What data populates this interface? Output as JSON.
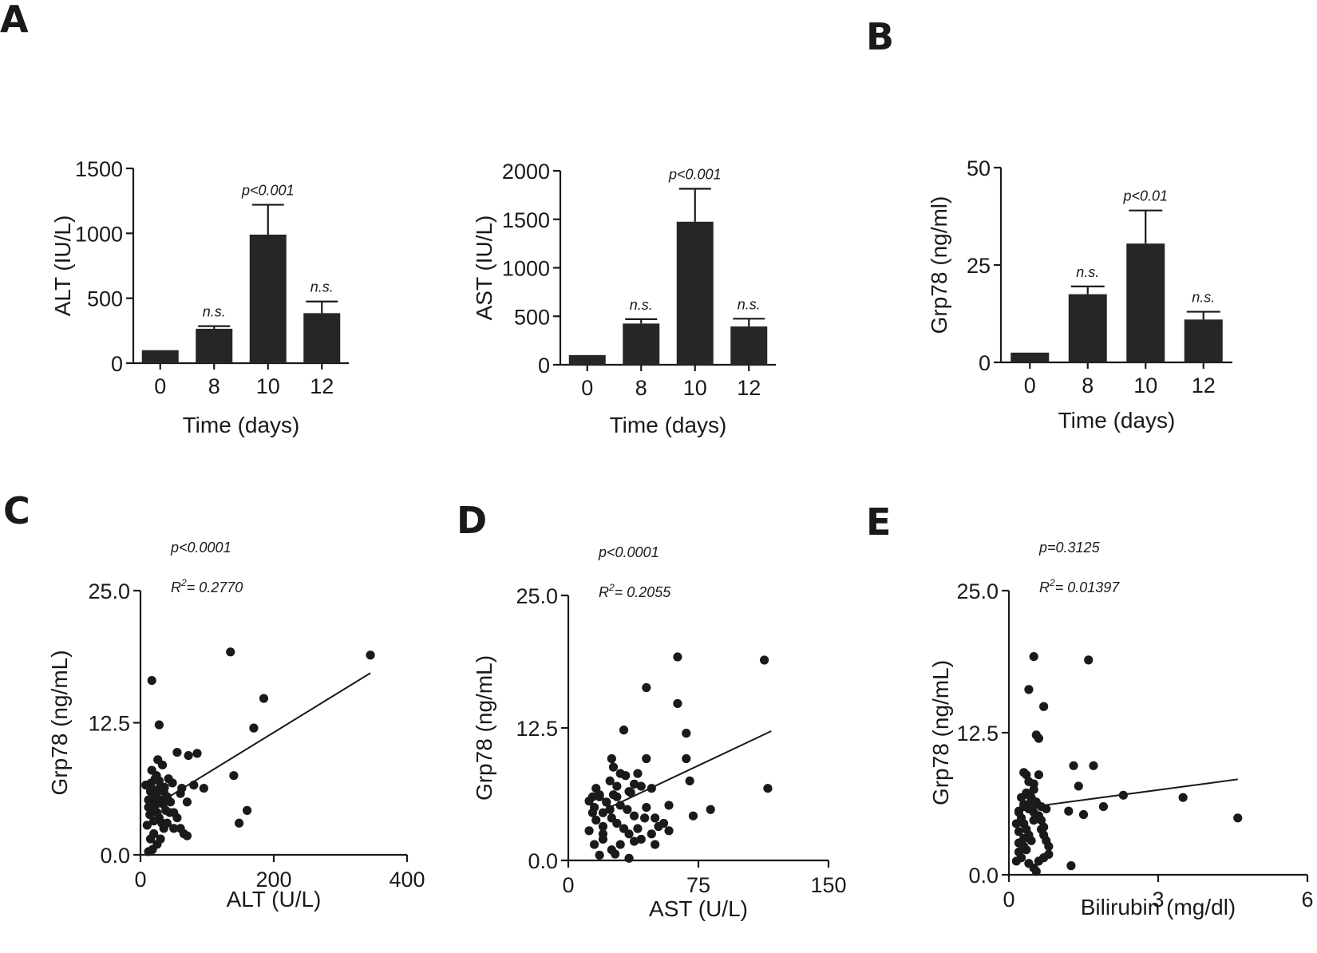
{
  "panel_labels": [
    "A",
    "B",
    "C",
    "D",
    "E"
  ],
  "chart_data": [
    {
      "id": "alt_bar",
      "panel": "A",
      "type": "bar",
      "categories": [
        "0",
        "8",
        "10",
        "12"
      ],
      "values": [
        100,
        265,
        990,
        385
      ],
      "errors": [
        0,
        20,
        230,
        90
      ],
      "annotations": [
        "",
        "n.s.",
        "p<0.001",
        "n.s."
      ],
      "ylabel": "ALT (IU/L)",
      "xlabel": "Time (days)",
      "ylim": [
        0,
        1500
      ],
      "yticks": [
        "0",
        "500",
        "1000",
        "1500"
      ]
    },
    {
      "id": "ast_bar",
      "panel": "A",
      "type": "bar",
      "categories": [
        "0",
        "8",
        "10",
        "12"
      ],
      "values": [
        100,
        425,
        1475,
        395
      ],
      "errors": [
        0,
        45,
        340,
        80
      ],
      "annotations": [
        "",
        "n.s.",
        "p<0.001",
        "n.s."
      ],
      "ylabel": "AST (IU/L)",
      "xlabel": "Time (days)",
      "ylim": [
        0,
        2000
      ],
      "yticks": [
        "0",
        "500",
        "1000",
        "1500",
        "2000"
      ]
    },
    {
      "id": "grp78_bar",
      "panel": "B",
      "type": "bar",
      "categories": [
        "0",
        "8",
        "10",
        "12"
      ],
      "values": [
        2.5,
        17.5,
        30.5,
        11
      ],
      "errors": [
        0,
        2,
        8.5,
        2
      ],
      "annotations": [
        "",
        "n.s.",
        "p<0.01",
        "n.s."
      ],
      "ylabel": "Grp78 (ng/ml)",
      "xlabel": "Time (days)",
      "ylim": [
        0,
        50
      ],
      "yticks": [
        "0",
        "25",
        "50"
      ]
    },
    {
      "id": "alt_scatter",
      "panel": "C",
      "type": "scatter",
      "xlabel": "ALT (U/L)",
      "ylabel": "Grp78 (ng/mL)",
      "xlim": [
        0,
        400
      ],
      "ylim": [
        0,
        25
      ],
      "xticks": [
        "0",
        "200",
        "400"
      ],
      "yticks": [
        "0.0",
        "12.5",
        "25.0"
      ],
      "p_text": "p<0.0001",
      "r2_prefix": "R",
      "r2_sup": "2",
      "r2_value": "= 0.2770",
      "fit": {
        "x": [
          30,
          345
        ],
        "y": [
          5.0,
          17.2
        ]
      },
      "points": [
        [
          17,
          16.5
        ],
        [
          28,
          12.3
        ],
        [
          135,
          19.2
        ],
        [
          345,
          18.9
        ],
        [
          185,
          14.8
        ],
        [
          170,
          12.0
        ],
        [
          140,
          7.5
        ],
        [
          160,
          4.2
        ],
        [
          148,
          3.0
        ],
        [
          55,
          9.7
        ],
        [
          85,
          9.6
        ],
        [
          72,
          9.4
        ],
        [
          62,
          6.3
        ],
        [
          95,
          6.3
        ],
        [
          80,
          6.6
        ],
        [
          17,
          8.0
        ],
        [
          22,
          7.2
        ],
        [
          30,
          6.5
        ],
        [
          35,
          6.0
        ],
        [
          40,
          5.5
        ],
        [
          15,
          6.0
        ],
        [
          18,
          5.0
        ],
        [
          20,
          4.5
        ],
        [
          25,
          4.0
        ],
        [
          28,
          3.5
        ],
        [
          32,
          3.0
        ],
        [
          35,
          2.5
        ],
        [
          20,
          2.0
        ],
        [
          15,
          1.5
        ],
        [
          25,
          1.0
        ],
        [
          18,
          0.5
        ],
        [
          12,
          0.3
        ],
        [
          45,
          5.0
        ],
        [
          50,
          4.0
        ],
        [
          55,
          3.5
        ],
        [
          60,
          2.5
        ],
        [
          65,
          2.0
        ],
        [
          40,
          3.0
        ],
        [
          22,
          5.5
        ],
        [
          26,
          6.0
        ],
        [
          30,
          5.2
        ],
        [
          34,
          4.8
        ],
        [
          38,
          4.2
        ],
        [
          12,
          4.5
        ],
        [
          14,
          3.8
        ],
        [
          16,
          6.8
        ],
        [
          24,
          7.5
        ],
        [
          42,
          7.2
        ],
        [
          48,
          6.8
        ],
        [
          60,
          5.8
        ],
        [
          70,
          5.0
        ],
        [
          33,
          8.5
        ],
        [
          26,
          9.0
        ],
        [
          50,
          2.5
        ],
        [
          30,
          1.5
        ],
        [
          20,
          3.2
        ],
        [
          10,
          2.8
        ],
        [
          12,
          5.2
        ],
        [
          36,
          6.4
        ],
        [
          44,
          4.0
        ],
        [
          28,
          7.0
        ],
        [
          18,
          6.2
        ],
        [
          70,
          1.8
        ],
        [
          8,
          6.6
        ],
        [
          24,
          4.8
        ]
      ]
    },
    {
      "id": "ast_scatter",
      "panel": "D",
      "type": "scatter",
      "xlabel": "AST (U/L)",
      "ylabel": "Grp78 (ng/mL)",
      "xlim": [
        0,
        150
      ],
      "ylim": [
        0,
        25
      ],
      "xticks": [
        "0",
        "75",
        "150"
      ],
      "yticks": [
        "0.0",
        "12.5",
        "25.0"
      ],
      "p_text": "p<0.0001",
      "r2_prefix": "R",
      "r2_sup": "2",
      "r2_value": "= 0.2055",
      "fit": {
        "x": [
          20,
          117
        ],
        "y": [
          4.7,
          12.2
        ]
      },
      "points": [
        [
          63,
          19.2
        ],
        [
          113,
          18.9
        ],
        [
          45,
          16.3
        ],
        [
          63,
          14.8
        ],
        [
          68,
          12.0
        ],
        [
          32,
          12.3
        ],
        [
          115,
          6.8
        ],
        [
          70,
          7.5
        ],
        [
          68,
          9.6
        ],
        [
          82,
          4.8
        ],
        [
          72,
          4.2
        ],
        [
          58,
          5.2
        ],
        [
          52,
          3.2
        ],
        [
          58,
          2.8
        ],
        [
          45,
          9.6
        ],
        [
          40,
          8.2
        ],
        [
          30,
          8.2
        ],
        [
          38,
          7.2
        ],
        [
          25,
          9.6
        ],
        [
          35,
          6.5
        ],
        [
          28,
          6.0
        ],
        [
          22,
          5.5
        ],
        [
          18,
          6.0
        ],
        [
          15,
          5.0
        ],
        [
          20,
          4.5
        ],
        [
          25,
          4.0
        ],
        [
          28,
          3.5
        ],
        [
          32,
          3.0
        ],
        [
          35,
          2.5
        ],
        [
          20,
          2.0
        ],
        [
          15,
          1.5
        ],
        [
          25,
          1.0
        ],
        [
          18,
          0.5
        ],
        [
          35,
          0.2
        ],
        [
          45,
          5.0
        ],
        [
          50,
          4.0
        ],
        [
          55,
          3.5
        ],
        [
          48,
          2.5
        ],
        [
          42,
          2.0
        ],
        [
          40,
          3.0
        ],
        [
          22,
          5.5
        ],
        [
          26,
          6.2
        ],
        [
          30,
          5.2
        ],
        [
          34,
          4.8
        ],
        [
          38,
          4.2
        ],
        [
          14,
          4.5
        ],
        [
          16,
          3.8
        ],
        [
          16,
          6.8
        ],
        [
          24,
          7.5
        ],
        [
          42,
          7.0
        ],
        [
          48,
          6.8
        ],
        [
          33,
          8.0
        ],
        [
          26,
          8.8
        ],
        [
          50,
          1.5
        ],
        [
          30,
          1.5
        ],
        [
          20,
          3.2
        ],
        [
          12,
          2.8
        ],
        [
          12,
          5.6
        ],
        [
          36,
          6.4
        ],
        [
          44,
          4.0
        ],
        [
          28,
          7.0
        ],
        [
          18,
          6.2
        ],
        [
          38,
          1.8
        ],
        [
          14,
          6.0
        ],
        [
          24,
          4.8
        ],
        [
          20,
          2.5
        ],
        [
          27,
          0.6
        ]
      ]
    },
    {
      "id": "bilirubin_scatter",
      "panel": "E",
      "type": "scatter",
      "xlabel": "Bilirubin (mg/dl)",
      "ylabel": "Grp78 (ng/mL)",
      "xlim": [
        0,
        6
      ],
      "ylim": [
        0,
        25
      ],
      "xticks": [
        "0",
        "3",
        "6"
      ],
      "yticks": [
        "0.0",
        "12.5",
        "25.0"
      ],
      "p_text": "p=0.3125",
      "r2_prefix": "R",
      "r2_sup": "2",
      "r2_value": "= 0.01397",
      "fit": {
        "x": [
          0.5,
          4.6
        ],
        "y": [
          6.0,
          8.4
        ]
      },
      "points": [
        [
          0.5,
          19.2
        ],
        [
          1.6,
          18.9
        ],
        [
          0.4,
          16.3
        ],
        [
          0.7,
          14.8
        ],
        [
          0.55,
          12.3
        ],
        [
          0.6,
          12.0
        ],
        [
          1.3,
          9.6
        ],
        [
          1.7,
          9.6
        ],
        [
          1.4,
          7.8
        ],
        [
          2.3,
          7.0
        ],
        [
          1.9,
          6.0
        ],
        [
          3.5,
          6.8
        ],
        [
          4.6,
          5.0
        ],
        [
          1.5,
          5.3
        ],
        [
          1.2,
          5.6
        ],
        [
          1.25,
          0.8
        ],
        [
          0.3,
          9.0
        ],
        [
          0.4,
          8.2
        ],
        [
          0.6,
          8.8
        ],
        [
          0.5,
          7.5
        ],
        [
          0.35,
          7.2
        ],
        [
          0.45,
          6.5
        ],
        [
          0.3,
          6.0
        ],
        [
          0.2,
          5.5
        ],
        [
          0.25,
          5.0
        ],
        [
          0.3,
          4.5
        ],
        [
          0.35,
          4.0
        ],
        [
          0.4,
          3.5
        ],
        [
          0.45,
          3.0
        ],
        [
          0.3,
          2.5
        ],
        [
          0.2,
          2.0
        ],
        [
          0.25,
          1.5
        ],
        [
          0.4,
          1.0
        ],
        [
          0.5,
          0.6
        ],
        [
          0.55,
          0.3
        ],
        [
          0.6,
          5.0
        ],
        [
          0.65,
          4.0
        ],
        [
          0.7,
          3.5
        ],
        [
          0.75,
          3.0
        ],
        [
          0.8,
          2.5
        ],
        [
          0.5,
          5.5
        ],
        [
          0.55,
          6.2
        ],
        [
          0.6,
          5.2
        ],
        [
          0.65,
          4.8
        ],
        [
          0.7,
          4.2
        ],
        [
          0.15,
          4.5
        ],
        [
          0.2,
          3.8
        ],
        [
          0.25,
          6.8
        ],
        [
          0.4,
          7.0
        ],
        [
          0.45,
          6.8
        ],
        [
          0.5,
          8.0
        ],
        [
          0.35,
          8.8
        ],
        [
          0.7,
          1.5
        ],
        [
          0.6,
          1.2
        ],
        [
          0.3,
          3.2
        ],
        [
          0.2,
          2.8
        ],
        [
          0.2,
          5.6
        ],
        [
          0.55,
          6.4
        ],
        [
          0.65,
          6.0
        ],
        [
          0.4,
          5.8
        ],
        [
          0.3,
          6.2
        ],
        [
          0.8,
          1.8
        ],
        [
          0.15,
          1.2
        ],
        [
          0.5,
          4.8
        ],
        [
          0.35,
          2.2
        ],
        [
          0.75,
          5.8
        ]
      ]
    }
  ]
}
